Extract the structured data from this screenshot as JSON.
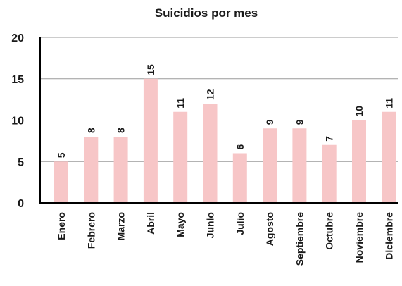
{
  "chart_data": {
    "type": "bar",
    "title": "Suicidios por mes",
    "xlabel": "",
    "ylabel": "",
    "categories": [
      "Enero",
      "Febrero",
      "Marzo",
      "Abril",
      "Mayo",
      "Junio",
      "Julio",
      "Agosto",
      "Septiembre",
      "Octubre",
      "Noviembre",
      "Diciembre"
    ],
    "values": [
      5,
      8,
      8,
      15,
      11,
      12,
      6,
      9,
      9,
      7,
      10,
      11
    ],
    "value_labels": [
      "5",
      "8",
      "8",
      "15",
      "11",
      "12",
      "6",
      "9",
      "9",
      "7",
      "10",
      "11"
    ],
    "ylim": [
      0,
      20
    ],
    "yticks": [
      0,
      5,
      10,
      15,
      20
    ],
    "ytick_labels": [
      "0",
      "5",
      "10",
      "15",
      "20"
    ],
    "grid": true,
    "legend": "none",
    "bar_color": "#f7c6c7"
  }
}
